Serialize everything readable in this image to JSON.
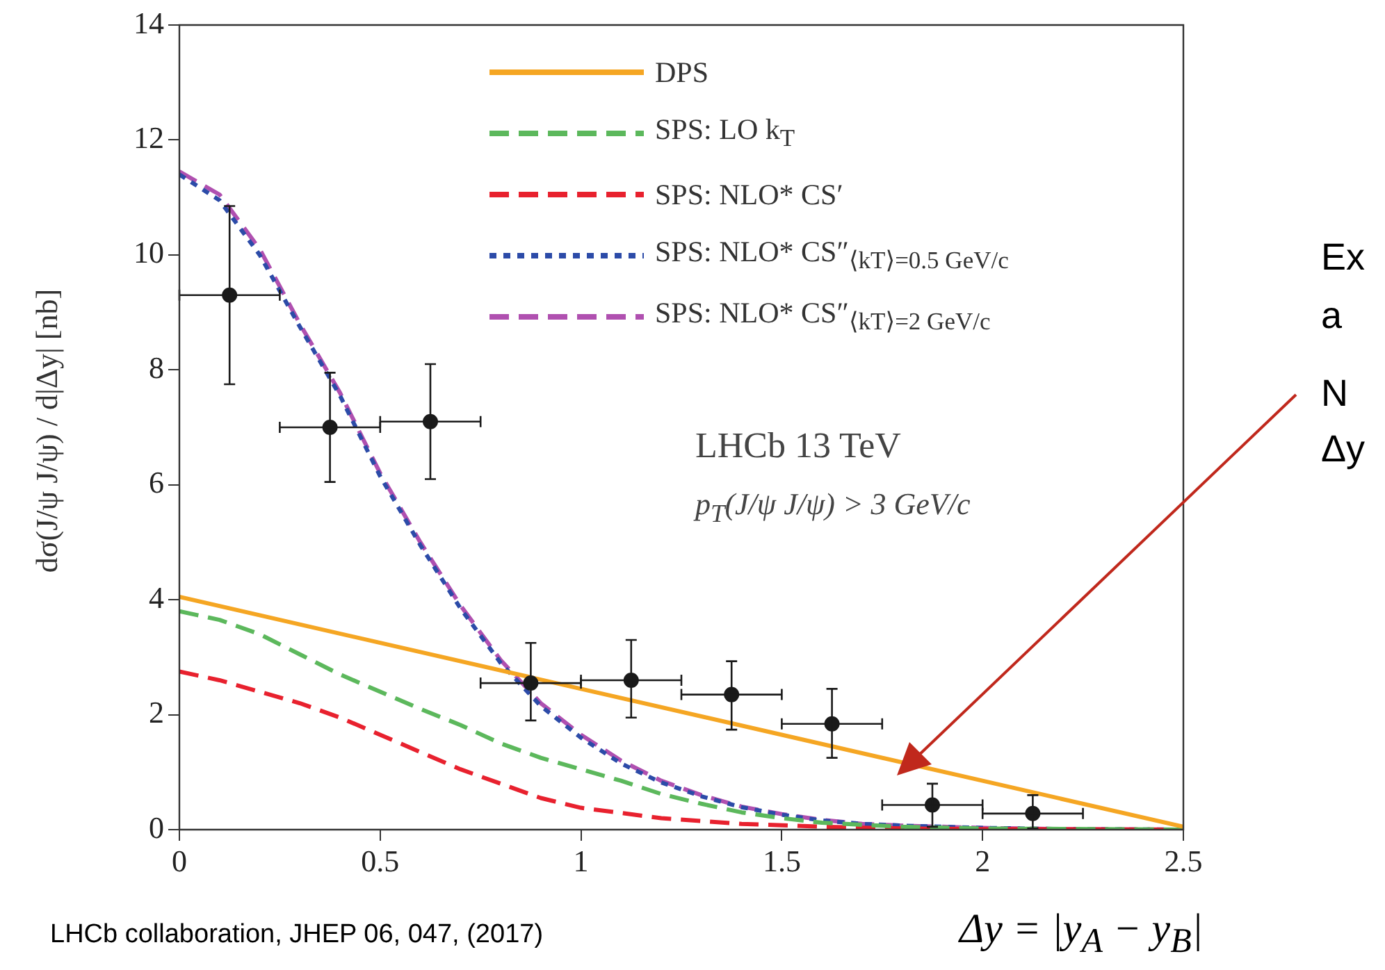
{
  "chart_data": {
    "type": "line",
    "xlabel": "Δy = |y$_{A}$ − y$_{B}$|",
    "ylabel": "dσ(J/ψ J/ψ) / d|Δy| [nb]",
    "xlim": [
      0,
      2.5
    ],
    "xticks": [
      0,
      0.5,
      1,
      1.5,
      2,
      2.5
    ],
    "ylim": [
      0,
      14
    ],
    "yticks": [
      0,
      2,
      4,
      6,
      8,
      10,
      12,
      14
    ],
    "grid": false,
    "legend": "top right",
    "marker": "none",
    "annotations": [
      "LHCb 13 TeV",
      "p$_{T}$(J/ψ J/ψ) > 3 GeV/c",
      "LHCb collaboration, JHEP 06, 047, (2017)",
      "Ex",
      "a",
      "N",
      "Δy"
    ],
    "series": [
      {
        "name": "DPS",
        "color": "#f5a623",
        "line_style": "solid",
        "x": [
          0,
          0.5,
          1,
          1.5,
          2,
          2.5
        ],
        "values": [
          4.05,
          3.25,
          2.45,
          1.65,
          0.85,
          0.05
        ]
      },
      {
        "name": "SPS: LO k$_{T}$",
        "color": "#5cb85c",
        "line_style": "dashed",
        "x": [
          0,
          0.1,
          0.2,
          0.3,
          0.4,
          0.5,
          0.6,
          0.7,
          0.8,
          0.9,
          1.0,
          1.1,
          1.2,
          1.3,
          1.4,
          1.5,
          1.6,
          1.8,
          2.0,
          2.5
        ],
        "values": [
          3.8,
          3.65,
          3.4,
          3.05,
          2.7,
          2.4,
          2.1,
          1.82,
          1.5,
          1.25,
          1.05,
          0.85,
          0.62,
          0.45,
          0.3,
          0.2,
          0.12,
          0.05,
          0.02,
          0
        ]
      },
      {
        "name": "SPS: NLO* CS′",
        "color": "#e8212e",
        "line_style": "dashed",
        "x": [
          0,
          0.1,
          0.2,
          0.3,
          0.4,
          0.5,
          0.6,
          0.7,
          0.8,
          0.9,
          1.0,
          1.2,
          1.4,
          1.6,
          1.8,
          2.0,
          2.5
        ],
        "values": [
          2.75,
          2.6,
          2.4,
          2.2,
          1.95,
          1.65,
          1.35,
          1.05,
          0.8,
          0.55,
          0.38,
          0.2,
          0.1,
          0.05,
          0.02,
          0.01,
          0
        ]
      },
      {
        "name": "SPS: NLO* CS″$_{⟨kT⟩=0.5 GeV/c}$",
        "color": "#2c4ba8",
        "line_style": "dotted",
        "x": [
          0,
          0.1,
          0.2,
          0.3,
          0.4,
          0.5,
          0.6,
          0.7,
          0.8,
          0.9,
          1.0,
          1.1,
          1.2,
          1.3,
          1.4,
          1.5,
          1.6,
          1.7,
          1.8,
          2.0,
          2.2,
          2.5
        ],
        "values": [
          11.4,
          10.95,
          10.0,
          8.75,
          7.55,
          6.15,
          4.95,
          3.85,
          2.9,
          2.15,
          1.6,
          1.15,
          0.82,
          0.58,
          0.39,
          0.26,
          0.16,
          0.1,
          0.07,
          0.03,
          0.01,
          0
        ]
      },
      {
        "name": "SPS: NLO* CS″$_{⟨kT⟩=2 GeV/c}$",
        "color": "#b050b0",
        "line_style": "dashed",
        "x": [
          0,
          0.1,
          0.2,
          0.3,
          0.4,
          0.5,
          0.6,
          0.7,
          0.8,
          0.9,
          1.0,
          1.1,
          1.2,
          1.3,
          1.4,
          1.5,
          1.6,
          1.7,
          1.8,
          2.0,
          2.2,
          2.5
        ],
        "values": [
          11.45,
          11.05,
          10.1,
          8.8,
          7.6,
          6.2,
          5.0,
          3.9,
          2.95,
          2.2,
          1.65,
          1.2,
          0.85,
          0.6,
          0.4,
          0.27,
          0.17,
          0.1,
          0.07,
          0.03,
          0.01,
          0
        ]
      },
      {
        "type": "scatter",
        "color": "#1a1a1a",
        "marker": "circle",
        "x": [
          0.125,
          0.375,
          0.625,
          0.875,
          1.125,
          1.375,
          1.625,
          1.875,
          2.125
        ],
        "values": [
          9.3,
          7.0,
          7.1,
          2.55,
          2.6,
          2.35,
          1.84,
          0.43,
          0.28
        ],
        "errors": [
          [
            7.75,
            10.85
          ],
          [
            6.05,
            7.95
          ],
          [
            6.1,
            8.1
          ],
          [
            1.9,
            3.25
          ],
          [
            1.95,
            3.3
          ],
          [
            1.74,
            2.93
          ],
          [
            1.25,
            2.45
          ],
          [
            0.05,
            0.8
          ],
          [
            0.02,
            0.6
          ]
        ],
        "xerrors": [
          0.125,
          0.125,
          0.125,
          0.125,
          0.125,
          0.125,
          0.125,
          0.125,
          0.125
        ]
      }
    ]
  }
}
